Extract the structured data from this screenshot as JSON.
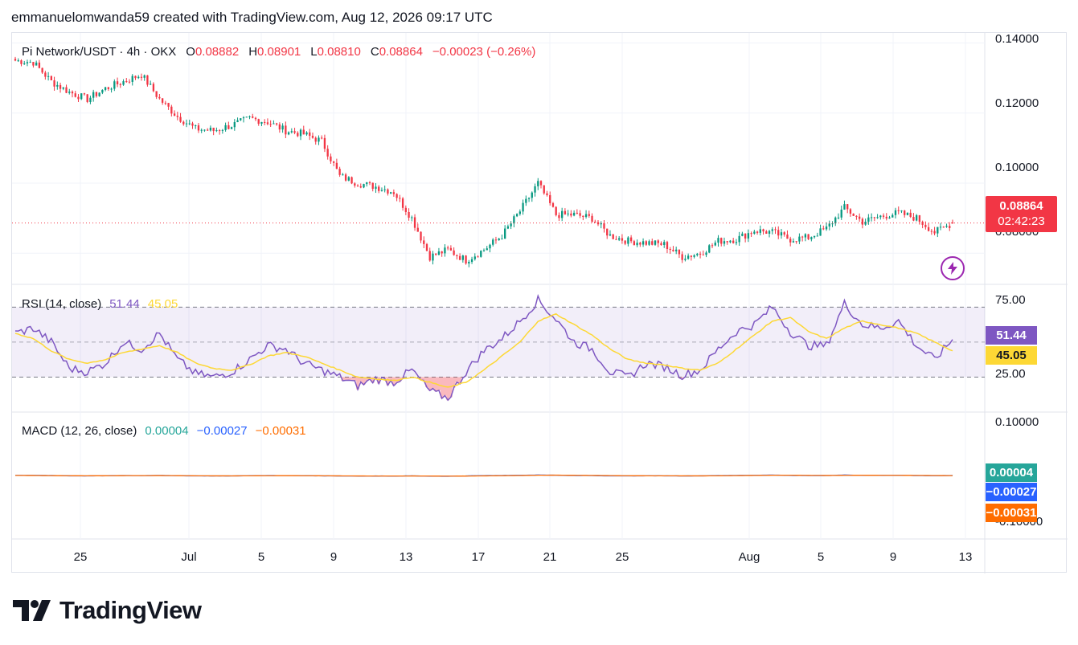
{
  "header": {
    "text": "emmanuelomwanda59 created with TradingView.com, Aug 12, 2026 09:17 UTC"
  },
  "footer": {
    "brand": "TradingView"
  },
  "colors": {
    "up": "#089981",
    "down": "#f23645",
    "rsi": "#7e57c2",
    "rsi_ma": "#fdd835",
    "macd": "#2962ff",
    "signal": "#ff6d00",
    "hist_up": "#26a69a",
    "grid": "#f0f3fa"
  },
  "legend": {
    "symbol": "Pi Network/USDT · 4h · OKX",
    "o_label": "O",
    "o_value": "0.08882",
    "h_label": "H",
    "h_value": "0.08901",
    "l_label": "L",
    "l_value": "0.08810",
    "c_label": "C",
    "c_value": "0.08864",
    "change": "−0.00023 (−0.26%)"
  },
  "rsi_legend": {
    "label": "RSI (14, close)",
    "rsi": "51.44",
    "ma": "45.05"
  },
  "macd_legend": {
    "label": "MACD (12, 26, close)",
    "hist": "0.00004",
    "macd": "−0.00027",
    "signal": "−0.00031"
  },
  "price_axis": {
    "ticks": [
      "0.14000",
      "0.12000",
      "0.10000",
      "0.08000"
    ],
    "last_price": "0.08864",
    "countdown": "02:42:23"
  },
  "rsi_axis": {
    "ticks": [
      "75.00",
      "25.00"
    ],
    "last_rsi": "51.44",
    "last_ma": "45.05"
  },
  "macd_axis": {
    "ticks": [
      "0.10000",
      "-0.10000"
    ],
    "hist": "0.00004",
    "macd": "−0.00027",
    "signal": "−0.00031"
  },
  "time_axis": [
    "25",
    "Jul",
    "5",
    "9",
    "13",
    "17",
    "21",
    "25",
    "Aug",
    "5",
    "9",
    "13"
  ],
  "chart_data": {
    "type": "candlestick",
    "symbol": "Pi Network/USDT",
    "timeframe": "4h",
    "ylim": [
      0.0725,
      0.1415
    ],
    "close_path": [
      {
        "t": "Jun 21",
        "v": 0.135
      },
      {
        "t": "Jun 22",
        "v": 0.1345
      },
      {
        "t": "Jun 23",
        "v": 0.129
      },
      {
        "t": "Jun 24",
        "v": 0.126
      },
      {
        "t": "Jun 25",
        "v": 0.124
      },
      {
        "t": "Jun 26",
        "v": 0.127
      },
      {
        "t": "Jun 27",
        "v": 0.129
      },
      {
        "t": "Jun 28",
        "v": 0.131
      },
      {
        "t": "Jun 29",
        "v": 0.124
      },
      {
        "t": "Jun 30",
        "v": 0.119
      },
      {
        "t": "Jul 1",
        "v": 0.1155
      },
      {
        "t": "Jul 2",
        "v": 0.115
      },
      {
        "t": "Jul 3",
        "v": 0.1165
      },
      {
        "t": "Jul 4",
        "v": 0.1185
      },
      {
        "t": "Jul 5",
        "v": 0.1175
      },
      {
        "t": "Jul 6",
        "v": 0.115
      },
      {
        "t": "Jul 7",
        "v": 0.114
      },
      {
        "t": "Jul 8",
        "v": 0.112
      },
      {
        "t": "Jul 9",
        "v": 0.102
      },
      {
        "t": "Jul 10",
        "v": 0.1
      },
      {
        "t": "Jul 11",
        "v": 0.099
      },
      {
        "t": "Jul 12",
        "v": 0.0975
      },
      {
        "t": "Jul 13",
        "v": 0.09
      },
      {
        "t": "Jul 14",
        "v": 0.079
      },
      {
        "t": "Jul 15",
        "v": 0.081
      },
      {
        "t": "Jul 16",
        "v": 0.078
      },
      {
        "t": "Jul 17",
        "v": 0.081
      },
      {
        "t": "Jul 18",
        "v": 0.085
      },
      {
        "t": "Jul 19",
        "v": 0.092
      },
      {
        "t": "Jul 20",
        "v": 0.1
      },
      {
        "t": "Jul 21",
        "v": 0.091
      },
      {
        "t": "Jul 22",
        "v": 0.091
      },
      {
        "t": "Jul 23",
        "v": 0.09
      },
      {
        "t": "Jul 24",
        "v": 0.085
      },
      {
        "t": "Jul 25",
        "v": 0.0835
      },
      {
        "t": "Jul 26",
        "v": 0.083
      },
      {
        "t": "Jul 27",
        "v": 0.0825
      },
      {
        "t": "Jul 28",
        "v": 0.079
      },
      {
        "t": "Jul 29",
        "v": 0.08
      },
      {
        "t": "Jul 30",
        "v": 0.0835
      },
      {
        "t": "Jul 31",
        "v": 0.084
      },
      {
        "t": "Aug 1",
        "v": 0.0865
      },
      {
        "t": "Aug 2",
        "v": 0.086
      },
      {
        "t": "Aug 3",
        "v": 0.084
      },
      {
        "t": "Aug 4",
        "v": 0.0845
      },
      {
        "t": "Aug 5",
        "v": 0.087
      },
      {
        "t": "Aug 6",
        "v": 0.093
      },
      {
        "t": "Aug 7",
        "v": 0.089
      },
      {
        "t": "Aug 8",
        "v": 0.0905
      },
      {
        "t": "Aug 9",
        "v": 0.0915
      },
      {
        "t": "Aug 10",
        "v": 0.09
      },
      {
        "t": "Aug 11",
        "v": 0.086
      },
      {
        "t": "Aug 12",
        "v": 0.0886
      }
    ],
    "last_candle": {
      "open": 0.08882,
      "high": 0.08901,
      "low": 0.0881,
      "close": 0.08864,
      "change": -0.00023,
      "change_pct": -0.26
    },
    "rsi": {
      "period": 14,
      "ylim": [
        10,
        83
      ],
      "bands": [
        70,
        30
      ],
      "midline": 50,
      "values": [
        55,
        58,
        50,
        35,
        33,
        38,
        50,
        46,
        55,
        40,
        32,
        30,
        33,
        40,
        48,
        46,
        38,
        34,
        30,
        25,
        29,
        27,
        34,
        22,
        18,
        33,
        45,
        52,
        62,
        74,
        63,
        50,
        46,
        33,
        30,
        38,
        36,
        31,
        34,
        46,
        56,
        60,
        70,
        56,
        48,
        48,
        72,
        60,
        58,
        62,
        48,
        40,
        51.44
      ],
      "ma_values": [
        55,
        52,
        45,
        40,
        38,
        40,
        44,
        46,
        48,
        44,
        38,
        35,
        34,
        37,
        42,
        44,
        42,
        38,
        34,
        30,
        29,
        28,
        30,
        27,
        24,
        27,
        34,
        42,
        50,
        62,
        66,
        60,
        54,
        46,
        40,
        38,
        37,
        35,
        34,
        38,
        46,
        54,
        62,
        64,
        56,
        52,
        58,
        62,
        60,
        58,
        55,
        50,
        45.05
      ]
    },
    "macd": {
      "fast": 12,
      "slow": 26,
      "ylim": [
        -0.11,
        0.11
      ],
      "hist": 4e-05,
      "macd": -0.00027,
      "signal": -0.00031
    }
  }
}
